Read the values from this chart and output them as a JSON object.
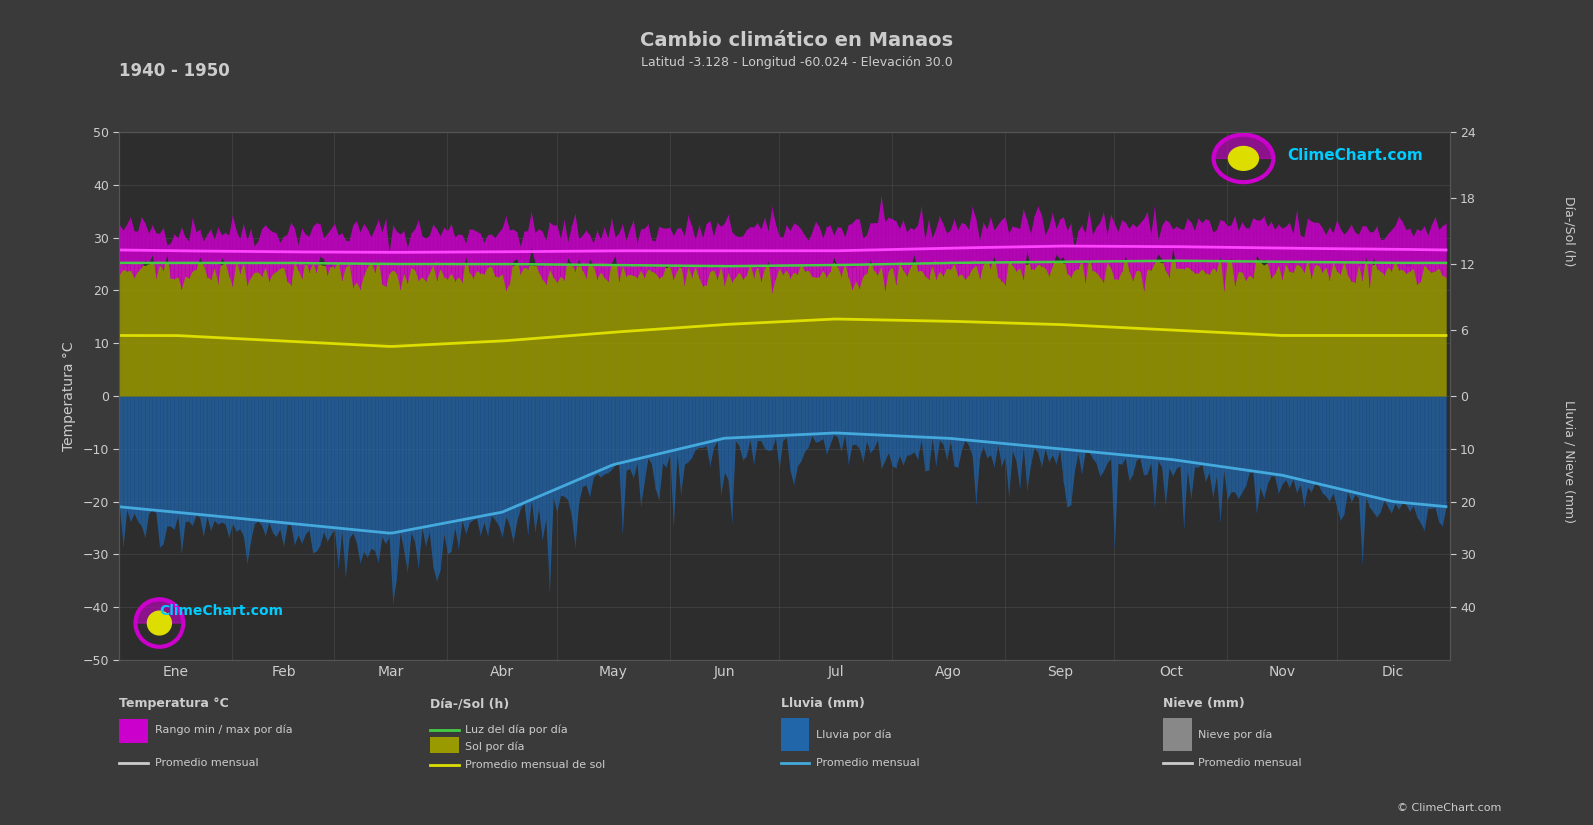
{
  "title": "Cambio climático en Manaos",
  "subtitle": "Latitud -3.128 - Longitud -60.024 - Elevación 30.0",
  "period_label": "1940 - 1950",
  "bg_color": "#3a3a3a",
  "plot_bg_color": "#2d2d2d",
  "grid_color": "#555555",
  "text_color": "#cccccc",
  "months": [
    "Ene",
    "Feb",
    "Mar",
    "Abr",
    "May",
    "Jun",
    "Jul",
    "Ago",
    "Sep",
    "Oct",
    "Nov",
    "Dic"
  ],
  "days_per_month": [
    31,
    28,
    31,
    30,
    31,
    30,
    31,
    31,
    30,
    31,
    30,
    31
  ],
  "temp_max_monthly": [
    31.5,
    31.3,
    31.1,
    31.2,
    31.3,
    31.5,
    31.8,
    32.5,
    32.8,
    32.5,
    32.0,
    31.8
  ],
  "temp_min_monthly": [
    23.5,
    23.4,
    23.3,
    23.5,
    23.8,
    23.5,
    23.2,
    23.5,
    24.0,
    24.2,
    24.0,
    23.8
  ],
  "temp_avg_monthly": [
    27.5,
    27.3,
    27.2,
    27.3,
    27.5,
    27.5,
    27.5,
    28.0,
    28.4,
    28.3,
    28.0,
    27.8
  ],
  "daylight_monthly": [
    12.1,
    12.1,
    12.0,
    12.0,
    11.9,
    11.8,
    11.9,
    12.1,
    12.2,
    12.3,
    12.2,
    12.1
  ],
  "sun_hours_monthly": [
    5.5,
    5.0,
    4.5,
    5.0,
    5.8,
    6.5,
    7.0,
    6.8,
    6.5,
    6.0,
    5.5,
    5.5
  ],
  "rain_monthly_avg": [
    22.0,
    24.0,
    26.0,
    22.0,
    13.0,
    8.0,
    7.0,
    8.0,
    10.0,
    12.0,
    15.0,
    20.0
  ],
  "temp_noise_std": 1.5,
  "rain_noise_std": 3.0,
  "sun_noise_std": 1.5,
  "purple_fill": "#cc00cc",
  "purple_daily_fill": "#aa00aa",
  "green_line": "#44cc44",
  "yellow_fill": "#999900",
  "yellow_daily_fill": "#888800",
  "yellow_line": "#dddd00",
  "blue_fill": "#2266aa",
  "blue_daily_fill": "#1a4a88",
  "blue_line": "#44aadd",
  "white_line": "#dddddd",
  "pink_avg_line": "#ff44ff",
  "dpi": 100,
  "figsize": [
    15.93,
    8.25
  ],
  "sun_scale": 2.0833,
  "rain_scale": 1.0,
  "left_ylim": [
    -50,
    50
  ],
  "right_sun_ticks": [
    0,
    6,
    12,
    18,
    24
  ],
  "right_rain_ticks": [
    0,
    10,
    20,
    30,
    40
  ]
}
